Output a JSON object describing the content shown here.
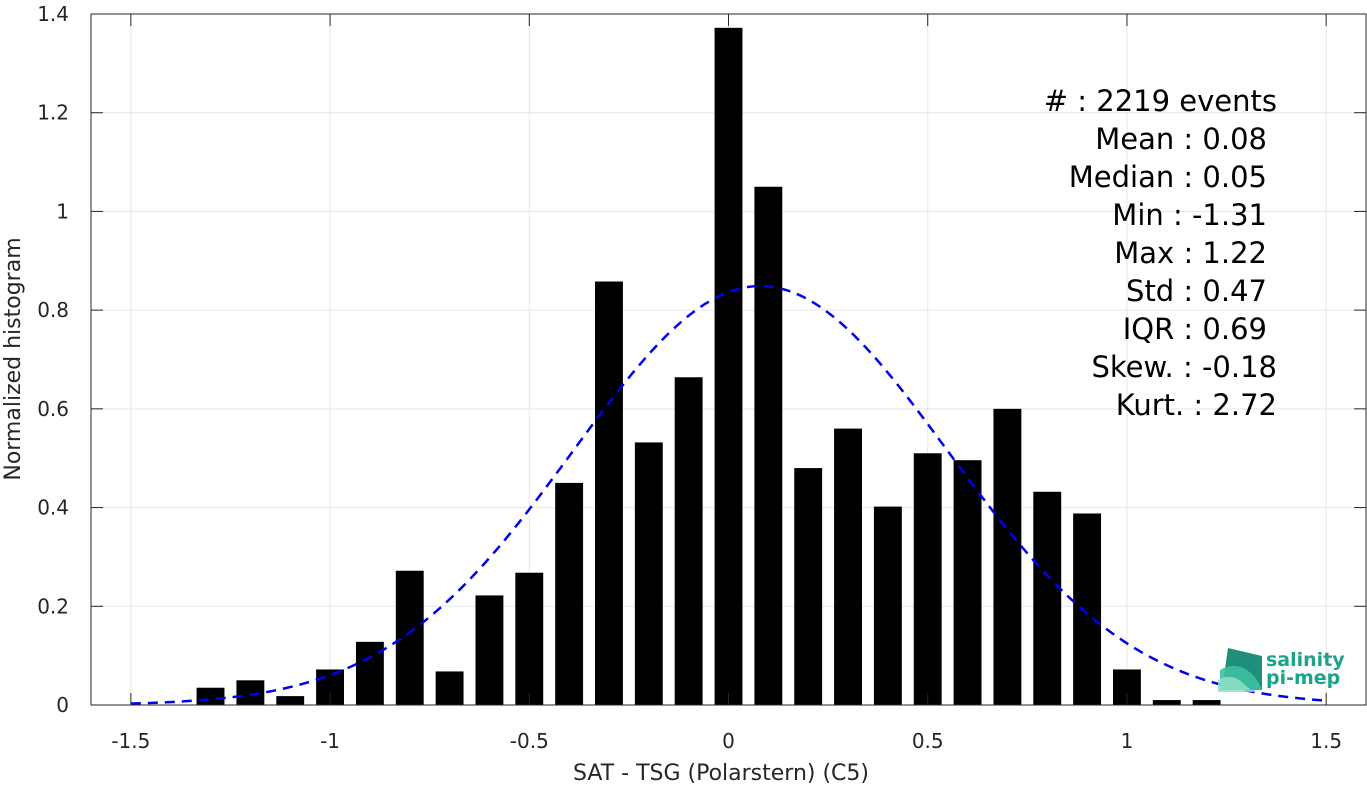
{
  "chart_data": {
    "type": "bar",
    "xlabel": "SAT - TSG (Polarstern) (C5)",
    "ylabel": "Normalized histogram",
    "xlim": [
      -1.6,
      1.6
    ],
    "ylim": [
      0,
      1.4
    ],
    "xticks": [
      -1.5,
      -1,
      -0.5,
      0,
      0.5,
      1,
      1.5
    ],
    "xtick_labels": [
      "-1.5",
      "-1",
      "-0.5",
      "0",
      "0.5",
      "1",
      "1.5"
    ],
    "yticks": [
      0,
      0.2,
      0.4,
      0.6,
      0.8,
      1,
      1.2,
      1.4
    ],
    "ytick_labels": [
      "0",
      "0.2",
      "0.4",
      "0.6",
      "0.8",
      "1",
      "1.2",
      "1.4"
    ],
    "grid": true,
    "bar_color": "#000000",
    "bin_centers": [
      -1.3,
      -1.2,
      -1.1,
      -1.0,
      -0.9,
      -0.8,
      -0.7,
      -0.6,
      -0.5,
      -0.4,
      -0.3,
      -0.2,
      -0.1,
      0.0,
      0.1,
      0.2,
      0.3,
      0.4,
      0.5,
      0.6,
      0.7,
      0.8,
      0.9,
      1.0,
      1.1,
      1.2
    ],
    "values": [
      0.035,
      0.05,
      0.018,
      0.072,
      0.128,
      0.272,
      0.068,
      0.222,
      0.268,
      0.45,
      0.858,
      0.532,
      0.664,
      1.372,
      1.05,
      0.48,
      0.56,
      0.402,
      0.51,
      0.496,
      0.6,
      0.432,
      0.388,
      0.072,
      0.01,
      0.01
    ],
    "fit_curve": {
      "type": "normal",
      "mean": 0.08,
      "std": 0.47,
      "color": "#0000ee",
      "style": "dashed",
      "x_range": [
        -1.5,
        1.5
      ]
    },
    "annotation_lines": [
      "#  : 2219 events",
      "Mean : 0.08",
      "Median : 0.05",
      "Min : -1.31",
      "Max : 1.22",
      "Std : 0.47",
      "IQR : 0.69",
      "Skew. : -0.18",
      "Kurt. : 2.72"
    ]
  },
  "logo": {
    "line1": "salinity",
    "line2": "pi-mep",
    "color": "#1aa58a"
  }
}
